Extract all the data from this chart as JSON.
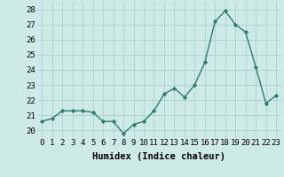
{
  "xlabel": "Humidex (Indice chaleur)",
  "x": [
    0,
    1,
    2,
    3,
    4,
    5,
    6,
    7,
    8,
    9,
    10,
    11,
    12,
    13,
    14,
    15,
    16,
    17,
    18,
    19,
    20,
    21,
    22,
    23
  ],
  "y": [
    20.6,
    20.8,
    21.3,
    21.3,
    21.3,
    21.2,
    20.6,
    20.6,
    19.8,
    20.4,
    20.6,
    21.3,
    22.4,
    22.8,
    22.2,
    23.0,
    24.5,
    27.2,
    27.9,
    27.0,
    26.5,
    24.2,
    21.8,
    22.3
  ],
  "line_color": "#2d7d6e",
  "marker": "D",
  "marker_size": 2.2,
  "line_width": 1.0,
  "bg_color": "#cdeae7",
  "grid_color": "#b0d4d0",
  "ylim": [
    19.5,
    28.5
  ],
  "yticks": [
    20,
    21,
    22,
    23,
    24,
    25,
    26,
    27,
    28
  ],
  "tick_fontsize": 6.5,
  "xlabel_fontsize": 7.5,
  "xtick_labels": [
    "0",
    "1",
    "2",
    "3",
    "4",
    "5",
    "6",
    "7",
    "8",
    "9",
    "10",
    "11",
    "12",
    "13",
    "14",
    "15",
    "16",
    "17",
    "18",
    "19",
    "20",
    "21",
    "22",
    "23"
  ]
}
